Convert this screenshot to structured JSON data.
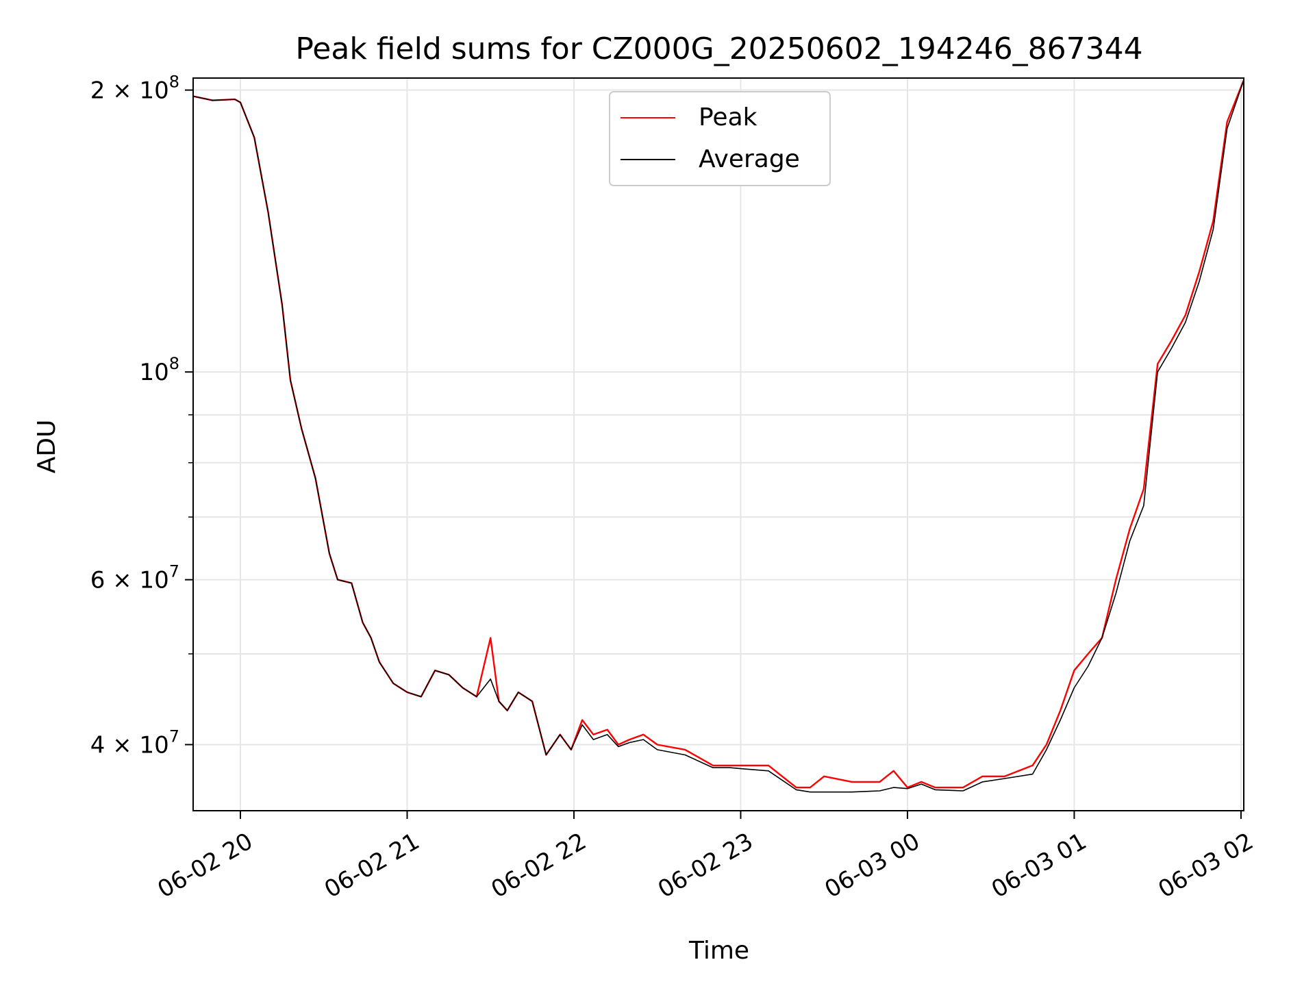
{
  "chart_data": {
    "type": "line",
    "title": "Peak field sums for CZ000G_20250602_194246_867344",
    "xlabel": "Time",
    "ylabel": "ADU",
    "yscale": "log",
    "ylim": [
      34000000,
      206000000
    ],
    "xlim": [
      "06-02 19:43",
      "06-03 02:01"
    ],
    "grid": true,
    "legend_position": "top-center",
    "x_tick_labels": [
      "06-02 20",
      "06-02 21",
      "06-02 22",
      "06-02 23",
      "06-03 00",
      "06-03 01",
      "06-03 02"
    ],
    "x_tick_values": [
      "06-02 20:00",
      "06-02 21:00",
      "06-02 22:00",
      "06-02 23:00",
      "06-03 00:00",
      "06-03 01:00",
      "06-03 02:00"
    ],
    "y_major_ticks": [
      {
        "value": 200000000,
        "mantissa": "2",
        "exp": "8"
      },
      {
        "value": 100000000,
        "mantissa": "",
        "exp": "8"
      },
      {
        "value": 60000000,
        "mantissa": "6",
        "exp": "7"
      },
      {
        "value": 40000000,
        "mantissa": "4",
        "exp": "7"
      }
    ],
    "y_minor_ticks": [
      90000000,
      80000000,
      70000000,
      50000000
    ],
    "x": [
      "06-02 19:43",
      "06-02 19:50",
      "06-02 19:58",
      "06-02 20:00",
      "06-02 20:05",
      "06-02 20:10",
      "06-02 20:15",
      "06-02 20:18",
      "06-02 20:22",
      "06-02 20:27",
      "06-02 20:32",
      "06-02 20:35",
      "06-02 20:40",
      "06-02 20:44",
      "06-02 20:47",
      "06-02 20:50",
      "06-02 20:55",
      "06-02 21:00",
      "06-02 21:05",
      "06-02 21:10",
      "06-02 21:15",
      "06-02 21:20",
      "06-02 21:25",
      "06-02 21:30",
      "06-02 21:33",
      "06-02 21:36",
      "06-02 21:40",
      "06-02 21:45",
      "06-02 21:50",
      "06-02 21:55",
      "06-02 21:59",
      "06-02 22:03",
      "06-02 22:07",
      "06-02 22:12",
      "06-02 22:16",
      "06-02 22:20",
      "06-02 22:25",
      "06-02 22:30",
      "06-02 22:40",
      "06-02 22:50",
      "06-02 22:56",
      "06-02 23:00",
      "06-02 23:10",
      "06-02 23:20",
      "06-02 23:25",
      "06-02 23:30",
      "06-02 23:40",
      "06-02 23:50",
      "06-02 23:55",
      "06-03 00:00",
      "06-03 00:05",
      "06-03 00:10",
      "06-03 00:20",
      "06-03 00:27",
      "06-03 00:35",
      "06-03 00:45",
      "06-03 00:50",
      "06-03 00:55",
      "06-03 01:00",
      "06-03 01:05",
      "06-03 01:10",
      "06-03 01:15",
      "06-03 01:20",
      "06-03 01:25",
      "06-03 01:30",
      "06-03 01:35",
      "06-03 01:40",
      "06-03 01:45",
      "06-03 01:50",
      "06-03 01:55",
      "06-03 02:01"
    ],
    "series": [
      {
        "name": "Peak",
        "color": "#ff0000",
        "values": [
          197000000,
          195000000,
          195500000,
          194000000,
          178000000,
          148000000,
          118000000,
          98000000,
          87000000,
          77000000,
          64000000,
          60000000,
          59500000,
          54000000,
          52000000,
          49000000,
          46500000,
          45500000,
          45000000,
          48000000,
          47500000,
          46000000,
          45000000,
          52000000,
          44500000,
          43500000,
          45500000,
          44500000,
          39000000,
          41000000,
          39500000,
          42500000,
          41000000,
          41500000,
          40000000,
          40500000,
          41000000,
          40000000,
          39500000,
          38000000,
          38000000,
          38000000,
          38000000,
          36000000,
          36000000,
          37000000,
          36500000,
          36500000,
          37500000,
          36000000,
          36500000,
          36000000,
          36000000,
          37000000,
          37000000,
          38000000,
          40000000,
          43500000,
          48000000,
          50000000,
          52000000,
          60000000,
          68000000,
          75000000,
          102000000,
          108000000,
          115000000,
          128000000,
          145000000,
          185000000,
          205000000
        ]
      },
      {
        "name": "Average",
        "color": "#000000",
        "values": [
          197000000,
          195000000,
          195500000,
          194000000,
          178000000,
          148000000,
          118000000,
          98000000,
          87000000,
          77000000,
          64000000,
          60000000,
          59500000,
          54000000,
          52000000,
          49000000,
          46500000,
          45500000,
          45000000,
          48000000,
          47500000,
          46000000,
          45000000,
          47000000,
          44500000,
          43500000,
          45500000,
          44500000,
          39000000,
          41000000,
          39500000,
          42000000,
          40500000,
          41000000,
          39800000,
          40200000,
          40500000,
          39500000,
          39000000,
          37800000,
          37800000,
          37700000,
          37500000,
          35800000,
          35600000,
          35600000,
          35600000,
          35700000,
          36000000,
          35900000,
          36300000,
          35800000,
          35700000,
          36500000,
          36800000,
          37200000,
          39500000,
          42500000,
          46000000,
          48500000,
          52000000,
          58000000,
          66000000,
          72000000,
          100000000,
          106000000,
          113000000,
          125000000,
          142000000,
          182000000,
          205000000
        ]
      }
    ]
  }
}
